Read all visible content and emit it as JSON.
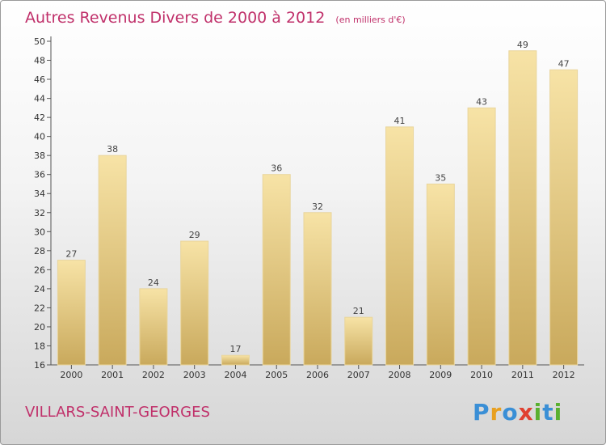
{
  "chart_data": {
    "type": "bar",
    "title": "Autres Revenus Divers de 2000 à 2012",
    "subtitle": "(en milliers d'€)",
    "categories": [
      "2000",
      "2001",
      "2002",
      "2003",
      "2004",
      "2005",
      "2006",
      "2007",
      "2008",
      "2009",
      "2010",
      "2011",
      "2012"
    ],
    "values": [
      27,
      38,
      24,
      29,
      17,
      36,
      32,
      21,
      41,
      35,
      43,
      49,
      47
    ],
    "ylim": [
      16,
      50
    ],
    "yticks": [
      16,
      18,
      20,
      22,
      24,
      26,
      28,
      30,
      32,
      34,
      36,
      38,
      40,
      42,
      44,
      46,
      48,
      50
    ],
    "grid": false,
    "bar_color_top": "#f7e3a6",
    "bar_color_bottom": "#c9a95c",
    "xlabel": "",
    "ylabel": ""
  },
  "place_name": "VILLARS-SAINT-GEORGES",
  "logo": {
    "letters": [
      "P",
      "r",
      "o",
      "x",
      "i",
      "t",
      "i"
    ],
    "colors": [
      "#3a8fd6",
      "#e8a020",
      "#3a8fd6",
      "#e04030",
      "#5ab030",
      "#3a8fd6",
      "#5ab030"
    ]
  },
  "colors": {
    "accent": "#c0306a"
  }
}
